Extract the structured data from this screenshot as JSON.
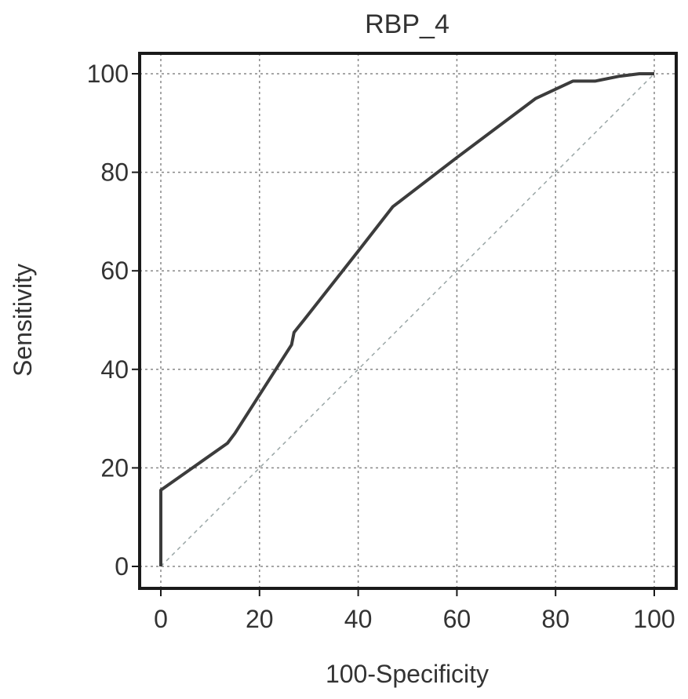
{
  "chart_data": {
    "type": "line",
    "title": "RBP_4",
    "xlabel": "100-Specificity",
    "ylabel": "Sensitivity",
    "xlim": [
      0,
      100
    ],
    "ylim": [
      0,
      100
    ],
    "x_ticks": [
      0,
      20,
      40,
      60,
      80,
      100
    ],
    "y_ticks": [
      0,
      20,
      40,
      60,
      80,
      100
    ],
    "grid": true,
    "series": [
      {
        "points": [
          [
            0,
            0
          ],
          [
            0,
            15.5
          ],
          [
            13.5,
            25
          ],
          [
            15,
            27
          ],
          [
            26.5,
            45
          ],
          [
            27,
            47.5
          ],
          [
            29,
            50
          ],
          [
            40,
            64
          ],
          [
            47,
            73
          ],
          [
            60,
            83
          ],
          [
            76,
            95
          ],
          [
            83.5,
            98.5
          ],
          [
            88,
            98.5
          ],
          [
            93,
            99.5
          ],
          [
            97,
            100
          ],
          [
            100,
            100
          ]
        ]
      }
    ],
    "reference_line": [
      [
        0,
        0
      ],
      [
        100,
        100
      ]
    ],
    "colors": {
      "curve": "#3c3c3c",
      "grid": "#888888",
      "reference": "#9aa6a6",
      "frame": "#1a1a1a",
      "text": "#333333"
    }
  }
}
